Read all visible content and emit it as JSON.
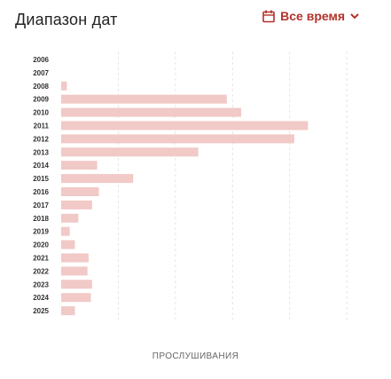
{
  "header": {
    "title": "Диапазон дат",
    "range_label": "Все время"
  },
  "colors": {
    "accent": "#b2332b",
    "bar": "#f1c9c6",
    "grid": "#e4e4e4"
  },
  "icons": {
    "calendar": "calendar-icon",
    "chevron": "chevron-down-icon"
  },
  "chart_data": {
    "type": "bar",
    "orientation": "horizontal",
    "categories": [
      "2006",
      "2007",
      "2008",
      "2009",
      "2010",
      "2011",
      "2012",
      "2013",
      "2014",
      "2015",
      "2016",
      "2017",
      "2018",
      "2019",
      "2020",
      "2021",
      "2022",
      "2023",
      "2024",
      "2025"
    ],
    "values": [
      0,
      0,
      1000,
      29000,
      31500,
      43200,
      40800,
      24000,
      6300,
      12600,
      6600,
      5400,
      3000,
      1500,
      2400,
      4800,
      4600,
      5400,
      5200,
      2400
    ],
    "xlabel": "ПРОСЛУШИВАНИЯ",
    "ylabel": "",
    "xlim": [
      0,
      52000
    ],
    "xticks": [
      "10000",
      "20000",
      "30000",
      "40000",
      "50000"
    ],
    "grid": true
  }
}
